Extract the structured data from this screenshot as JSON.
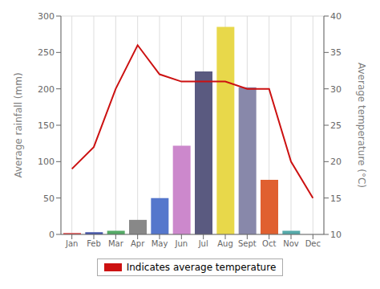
{
  "chart_data": {
    "type": "bar",
    "categories": [
      "Jan",
      "Feb",
      "Mar",
      "Apr",
      "May",
      "Jun",
      "Jul",
      "Aug",
      "Sept",
      "Oct",
      "Nov",
      "Dec"
    ],
    "series": [
      {
        "type": "bar",
        "colors": [
          "#e05050",
          "#4455aa",
          "#55aa66",
          "#888888",
          "#5577cc",
          "#cc88cc",
          "#5a5a80",
          "#e8d84a",
          "#8888aa",
          "#e06030",
          "#55aaaa",
          "#bbbbcc"
        ],
        "values": [
          2,
          3,
          5,
          20,
          50,
          122,
          224,
          285,
          202,
          75,
          5,
          0
        ]
      },
      {
        "type": "line",
        "name": "Indicates average temperature",
        "color": "#cc1111",
        "axis": "y2",
        "values": [
          19,
          22,
          30,
          36,
          32,
          31,
          31,
          31,
          30,
          30,
          20,
          15
        ]
      }
    ],
    "ylabel": "Average rainfall (mm)",
    "y2label": "Average temperature (°C)",
    "ylim": [
      0,
      300
    ],
    "yticks": [
      0,
      50,
      100,
      150,
      200,
      250,
      300
    ],
    "y2lim": [
      10,
      40
    ],
    "y2ticks": [
      10,
      15,
      20,
      25,
      30,
      35,
      40
    ],
    "grid": true,
    "legend": "bottom"
  }
}
